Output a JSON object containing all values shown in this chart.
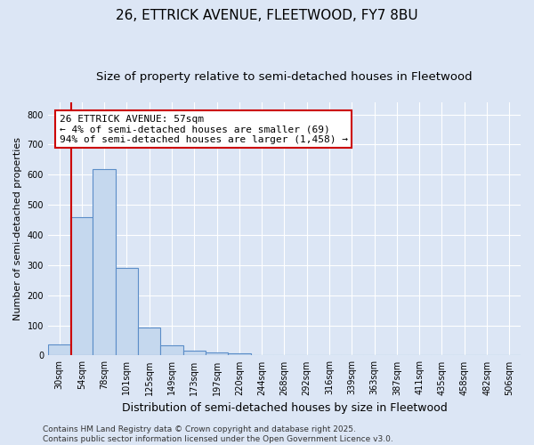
{
  "title1": "26, ETTRICK AVENUE, FLEETWOOD, FY7 8BU",
  "title2": "Size of property relative to semi-detached houses in Fleetwood",
  "xlabel": "Distribution of semi-detached houses by size in Fleetwood",
  "ylabel": "Number of semi-detached properties",
  "categories": [
    "30sqm",
    "54sqm",
    "78sqm",
    "101sqm",
    "125sqm",
    "149sqm",
    "173sqm",
    "197sqm",
    "220sqm",
    "244sqm",
    "268sqm",
    "292sqm",
    "316sqm",
    "339sqm",
    "363sqm",
    "387sqm",
    "411sqm",
    "435sqm",
    "458sqm",
    "482sqm",
    "506sqm"
  ],
  "values": [
    38,
    460,
    618,
    290,
    93,
    33,
    15,
    10,
    6,
    0,
    0,
    0,
    0,
    0,
    0,
    0,
    0,
    0,
    0,
    0,
    0
  ],
  "bar_color": "#c5d8ee",
  "bar_edge_color": "#5b8dc8",
  "vline_color": "#cc0000",
  "vline_x": 0.55,
  "annotation_text": "26 ETTRICK AVENUE: 57sqm\n← 4% of semi-detached houses are smaller (69)\n94% of semi-detached houses are larger (1,458) →",
  "annotation_box_facecolor": "#ffffff",
  "annotation_box_edgecolor": "#cc0000",
  "ylim": [
    0,
    840
  ],
  "yticks": [
    0,
    100,
    200,
    300,
    400,
    500,
    600,
    700,
    800
  ],
  "background_color": "#dce6f5",
  "plot_bg_color": "#dce6f5",
  "grid_color": "#ffffff",
  "footer_text": "Contains HM Land Registry data © Crown copyright and database right 2025.\nContains public sector information licensed under the Open Government Licence v3.0.",
  "title1_fontsize": 11,
  "title2_fontsize": 9.5,
  "xlabel_fontsize": 9,
  "ylabel_fontsize": 8,
  "annotation_fontsize": 8,
  "footer_fontsize": 6.5,
  "tick_fontsize": 7
}
